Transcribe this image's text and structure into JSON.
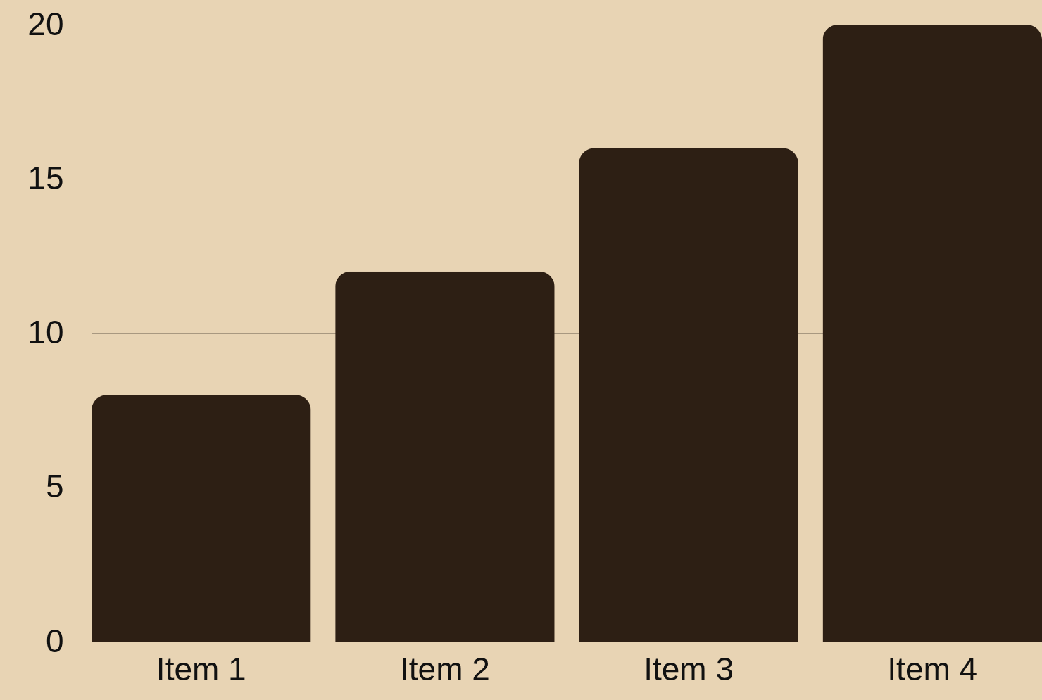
{
  "chart_data": {
    "type": "bar",
    "categories": [
      "Item 1",
      "Item 2",
      "Item 3",
      "Item 4"
    ],
    "values": [
      8,
      12,
      16,
      20
    ],
    "color": "#2d1f14",
    "ylim": [
      0,
      20
    ],
    "yticks": [
      0,
      5,
      10,
      15,
      20
    ],
    "grid": "y"
  }
}
